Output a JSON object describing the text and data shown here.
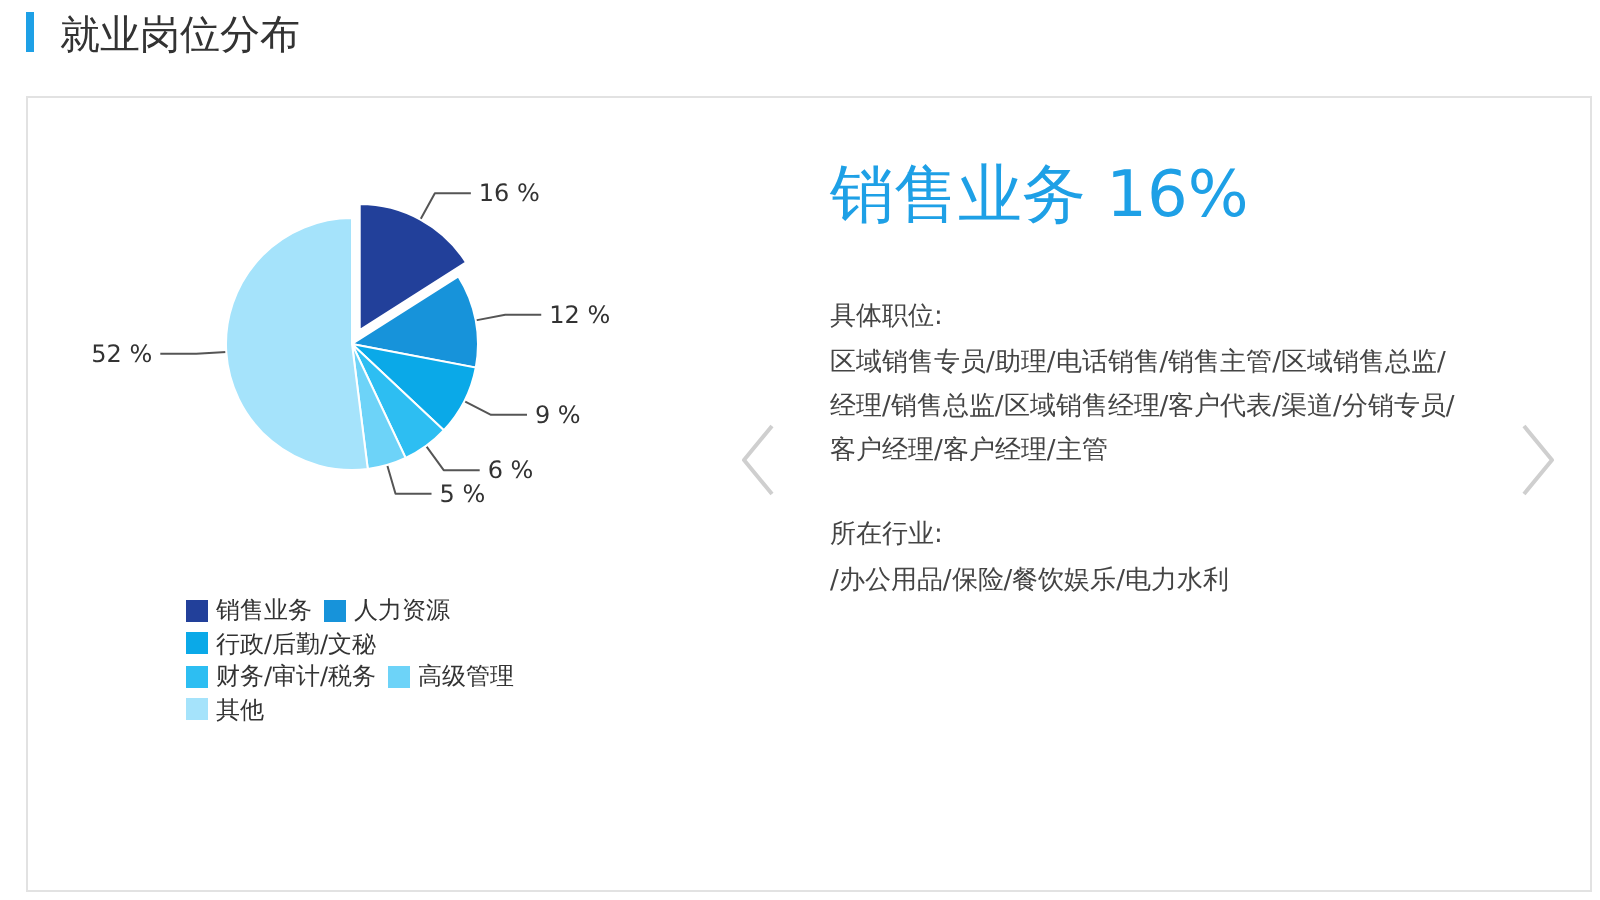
{
  "chart_data": [
    {
      "type": "pie",
      "title": "就业岗位分布",
      "categories": [
        "销售业务",
        "人力资源",
        "行政/后勤/文秘",
        "财务/审计/税务",
        "高级管理",
        "其他"
      ],
      "values": [
        16,
        12,
        9,
        6,
        5,
        52
      ],
      "colors": [
        "#22409a",
        "#1793da",
        "#0aa9e8",
        "#2dbef2",
        "#6dd3f8",
        "#a5e3fb"
      ],
      "value_labels": [
        "16 %",
        "12 %",
        "9 %",
        "6 %",
        "5 %",
        "52 %"
      ],
      "legend": "bottom"
    },
    {
      "type": "other",
      "title": "销售业务 16%",
      "annotations": [
        "具体职位:",
        "区域销售专员/助理/电话销售/销售主管/区域销售总监/经理/销售总监/区域销售经理/客户代表/渠道/分销专员/客户经理/客户经理/主管",
        "所在行业:",
        "/办公用品/保险/餐饮娱乐/电力水利"
      ]
    }
  ]
}
